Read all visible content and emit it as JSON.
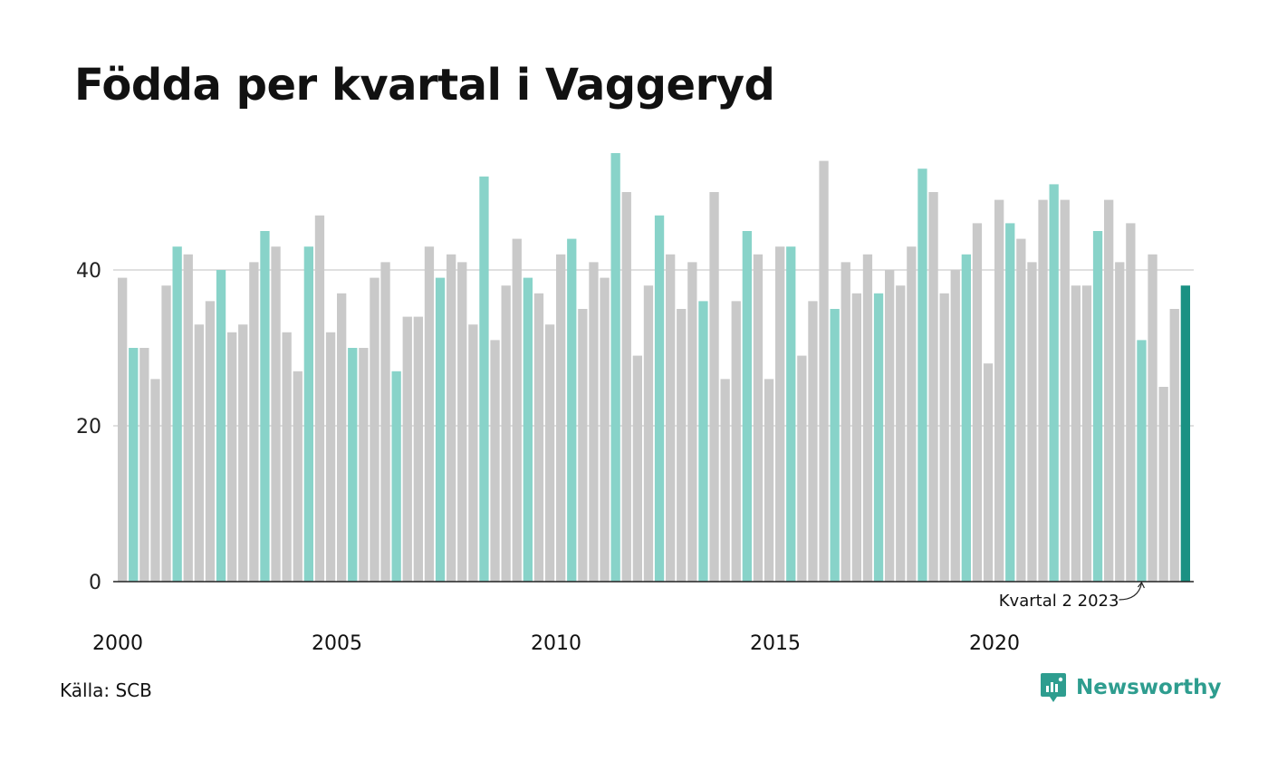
{
  "header": {
    "title": "Födda per kvartal i Vaggeryd"
  },
  "footer": {
    "source": "Källa: SCB",
    "brand": "Newsworthy"
  },
  "colors": {
    "highlight_quarter": "#88d3c9",
    "other_quarter": "#c9c9c9",
    "latest": "#1a9183",
    "brand": "#2e9d8f"
  },
  "chart_data": {
    "type": "bar",
    "title": "Födda per kvartal i Vaggeryd",
    "xlabel": "",
    "ylabel": "",
    "ylim": [
      0,
      55
    ],
    "yticks": [
      0,
      20,
      40
    ],
    "xticks": [
      "2000",
      "2005",
      "2010",
      "2015",
      "2020"
    ],
    "grid": true,
    "start": "2000 Q1",
    "end": "2024 Q2",
    "highlight": "Kvartal 2 each year",
    "annotation": "Kvartal 2 2023",
    "categories": [
      "2000 Q1",
      "2000 Q2",
      "2000 Q3",
      "2000 Q4",
      "2001 Q1",
      "2001 Q2",
      "2001 Q3",
      "2001 Q4",
      "2002 Q1",
      "2002 Q2",
      "2002 Q3",
      "2002 Q4",
      "2003 Q1",
      "2003 Q2",
      "2003 Q3",
      "2003 Q4",
      "2004 Q1",
      "2004 Q2",
      "2004 Q3",
      "2004 Q4",
      "2005 Q1",
      "2005 Q2",
      "2005 Q3",
      "2005 Q4",
      "2006 Q1",
      "2006 Q2",
      "2006 Q3",
      "2006 Q4",
      "2007 Q1",
      "2007 Q2",
      "2007 Q3",
      "2007 Q4",
      "2008 Q1",
      "2008 Q2",
      "2008 Q3",
      "2008 Q4",
      "2009 Q1",
      "2009 Q2",
      "2009 Q3",
      "2009 Q4",
      "2010 Q1",
      "2010 Q2",
      "2010 Q3",
      "2010 Q4",
      "2011 Q1",
      "2011 Q2",
      "2011 Q3",
      "2011 Q4",
      "2012 Q1",
      "2012 Q2",
      "2012 Q3",
      "2012 Q4",
      "2013 Q1",
      "2013 Q2",
      "2013 Q3",
      "2013 Q4",
      "2014 Q1",
      "2014 Q2",
      "2014 Q3",
      "2014 Q4",
      "2015 Q1",
      "2015 Q2",
      "2015 Q3",
      "2015 Q4",
      "2016 Q1",
      "2016 Q2",
      "2016 Q3",
      "2016 Q4",
      "2017 Q1",
      "2017 Q2",
      "2017 Q3",
      "2017 Q4",
      "2018 Q1",
      "2018 Q2",
      "2018 Q3",
      "2018 Q4",
      "2019 Q1",
      "2019 Q2",
      "2019 Q3",
      "2019 Q4",
      "2020 Q1",
      "2020 Q2",
      "2020 Q3",
      "2020 Q4",
      "2021 Q1",
      "2021 Q2",
      "2021 Q3",
      "2021 Q4",
      "2022 Q1",
      "2022 Q2",
      "2022 Q3",
      "2022 Q4",
      "2023 Q1",
      "2023 Q2",
      "2023 Q3",
      "2023 Q4",
      "2024 Q1",
      "2024 Q2"
    ],
    "values": [
      39,
      30,
      30,
      26,
      38,
      43,
      42,
      33,
      36,
      40,
      32,
      33,
      41,
      45,
      43,
      32,
      27,
      43,
      47,
      32,
      37,
      30,
      30,
      39,
      41,
      27,
      34,
      34,
      43,
      39,
      42,
      41,
      33,
      52,
      31,
      38,
      44,
      39,
      37,
      33,
      42,
      44,
      35,
      41,
      39,
      55,
      50,
      29,
      38,
      47,
      42,
      35,
      41,
      36,
      50,
      26,
      36,
      45,
      42,
      26,
      43,
      43,
      29,
      36,
      54,
      35,
      41,
      37,
      42,
      37,
      40,
      38,
      43,
      53,
      50,
      37,
      40,
      42,
      46,
      28,
      49,
      46,
      44,
      41,
      49,
      51,
      49,
      38,
      38,
      45,
      49,
      41,
      46,
      31,
      42,
      25,
      35,
      38
    ]
  }
}
